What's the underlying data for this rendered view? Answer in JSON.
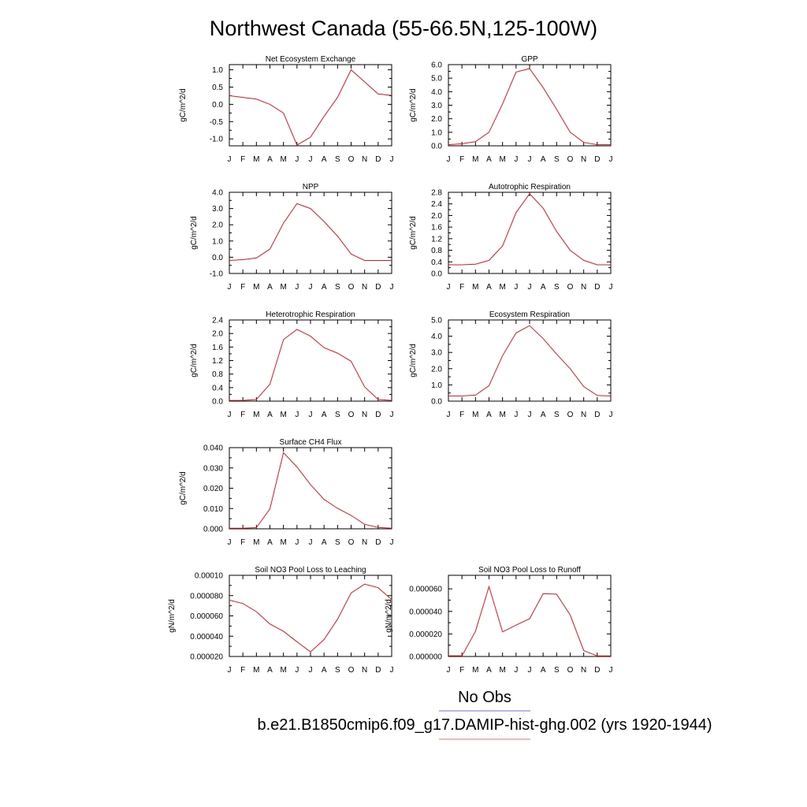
{
  "title": "Northwest Canada (55-66.5N,125-100W)",
  "month_labels": [
    "J",
    "F",
    "M",
    "A",
    "M",
    "J",
    "J",
    "A",
    "S",
    "O",
    "N",
    "D",
    "J"
  ],
  "legend": {
    "entries": [
      {
        "label": "No Obs",
        "color": "#6a6aff"
      },
      {
        "label": "b.e21.B1850cmip6.f09_g17.DAMIP-hist-ghg.002 (yrs 1920-1944)",
        "color": "#ff6a6a"
      }
    ]
  },
  "line_color": "#e8141e",
  "chart_data": [
    {
      "type": "line",
      "title": "Net Ecosystem Exchange",
      "ylabel": "gC/m^2/d",
      "ylim": [
        -1.2,
        1.15
      ],
      "yticks": [
        -1.0,
        -0.5,
        0.0,
        0.5,
        1.0
      ],
      "yticklabels": [
        "-1.0",
        "-0.5",
        "0.0",
        "0.5",
        "1.0"
      ],
      "series": [
        {
          "values": [
            0.25,
            0.2,
            0.15,
            0.0,
            -0.25,
            -1.18,
            -0.95,
            -0.35,
            0.2,
            1.0,
            0.65,
            0.3,
            0.26
          ]
        }
      ]
    },
    {
      "type": "line",
      "title": "GPP",
      "ylabel": "gC/m^2/d",
      "ylim": [
        0.0,
        6.0
      ],
      "yticks": [
        0.0,
        1.0,
        2.0,
        3.0,
        4.0,
        5.0,
        6.0
      ],
      "yticklabels": [
        "0.0",
        "1.0",
        "2.0",
        "3.0",
        "4.0",
        "5.0",
        "6.0"
      ],
      "series": [
        {
          "values": [
            0.08,
            0.15,
            0.3,
            1.0,
            3.1,
            5.45,
            5.7,
            4.3,
            2.7,
            1.0,
            0.25,
            0.08,
            0.08
          ]
        }
      ]
    },
    {
      "type": "line",
      "title": "NPP",
      "ylabel": "gC/m^2/d",
      "ylim": [
        -1.0,
        4.0
      ],
      "yticks": [
        -1.0,
        0.0,
        1.0,
        2.0,
        3.0,
        4.0
      ],
      "yticklabels": [
        "-1.0",
        "0.0",
        "1.0",
        "2.0",
        "3.0",
        "4.0"
      ],
      "series": [
        {
          "values": [
            -0.2,
            -0.15,
            -0.05,
            0.5,
            2.1,
            3.3,
            3.0,
            2.2,
            1.3,
            0.2,
            -0.2,
            -0.2,
            -0.2
          ]
        }
      ]
    },
    {
      "type": "line",
      "title": "Autotrophic Respiration",
      "ylabel": "gC/m^2/d",
      "ylim": [
        0.0,
        2.8
      ],
      "yticks": [
        0.0,
        0.4,
        0.8,
        1.2,
        1.6,
        2.0,
        2.4,
        2.8
      ],
      "yticklabels": [
        "0.0",
        "0.4",
        "0.8",
        "1.2",
        "1.6",
        "2.0",
        "2.4",
        "2.8"
      ],
      "series": [
        {
          "values": [
            0.3,
            0.3,
            0.32,
            0.45,
            0.95,
            2.1,
            2.75,
            2.25,
            1.45,
            0.8,
            0.45,
            0.3,
            0.3
          ]
        }
      ]
    },
    {
      "type": "line",
      "title": "Heterotrophic Respiration",
      "ylabel": "gC/m^2/d",
      "ylim": [
        0.0,
        2.4
      ],
      "yticks": [
        0.0,
        0.4,
        0.8,
        1.2,
        1.6,
        2.0,
        2.4
      ],
      "yticklabels": [
        "0.0",
        "0.4",
        "0.8",
        "1.2",
        "1.6",
        "2.0",
        "2.4"
      ],
      "series": [
        {
          "values": [
            0.02,
            0.02,
            0.05,
            0.5,
            1.82,
            2.12,
            1.92,
            1.58,
            1.42,
            1.18,
            0.42,
            0.05,
            0.02
          ]
        }
      ]
    },
    {
      "type": "line",
      "title": "Ecosystem Respiration",
      "ylabel": "gC/m^2/d",
      "ylim": [
        0.0,
        5.0
      ],
      "yticks": [
        0.0,
        1.0,
        2.0,
        3.0,
        4.0,
        5.0
      ],
      "yticklabels": [
        "0.0",
        "1.0",
        "2.0",
        "3.0",
        "4.0",
        "5.0"
      ],
      "series": [
        {
          "values": [
            0.32,
            0.32,
            0.37,
            0.95,
            2.8,
            4.2,
            4.65,
            3.85,
            2.9,
            2.0,
            0.9,
            0.35,
            0.32
          ]
        }
      ]
    },
    {
      "type": "line",
      "title": "Surface CH4 Flux",
      "ylabel": "gC/m^2/d",
      "ylim": [
        0.0,
        0.04
      ],
      "yticks": [
        0.0,
        0.01,
        0.02,
        0.03,
        0.04
      ],
      "yticklabels": [
        "0.000",
        "0.010",
        "0.020",
        "0.030",
        "0.040"
      ],
      "series": [
        {
          "values": [
            0.0003,
            0.0003,
            0.0006,
            0.0098,
            0.0375,
            0.0305,
            0.0218,
            0.0145,
            0.0101,
            0.0066,
            0.0022,
            0.0007,
            0.0003
          ]
        }
      ]
    },
    {
      "type": "line",
      "title": "Soil NO3 Pool Loss to Leaching",
      "ylabel": "gN/m^2/d",
      "ylim": [
        2e-05,
        0.0001
      ],
      "yticks": [
        2e-05,
        4e-05,
        6e-05,
        8e-05,
        0.0001
      ],
      "yticklabels": [
        "0.000020",
        "0.000040",
        "0.000060",
        "0.000080",
        "0.00010"
      ],
      "series": [
        {
          "values": [
            7.55e-05,
            7.22e-05,
            6.42e-05,
            5.2e-05,
            4.48e-05,
            3.45e-05,
            2.45e-05,
            3.67e-05,
            5.67e-05,
            8.25e-05,
            9.13e-05,
            8.78e-05,
            7.6e-05
          ]
        }
      ]
    },
    {
      "type": "line",
      "title": "Soil NO3 Pool Loss to Runoff",
      "ylabel": "gN/m^2/d",
      "ylim": [
        0.0,
        7.2e-05
      ],
      "yticks": [
        0.0,
        2e-05,
        4e-05,
        6e-05
      ],
      "yticklabels": [
        "0.000000",
        "0.000020",
        "0.000040",
        "0.000060"
      ],
      "series": [
        {
          "values": [
            6e-07,
            6e-07,
            2.22e-05,
            6.2e-05,
            2.18e-05,
            2.78e-05,
            3.35e-05,
            5.57e-05,
            5.52e-05,
            3.68e-05,
            5.2e-06,
            5e-07,
            5e-07
          ]
        }
      ]
    }
  ]
}
